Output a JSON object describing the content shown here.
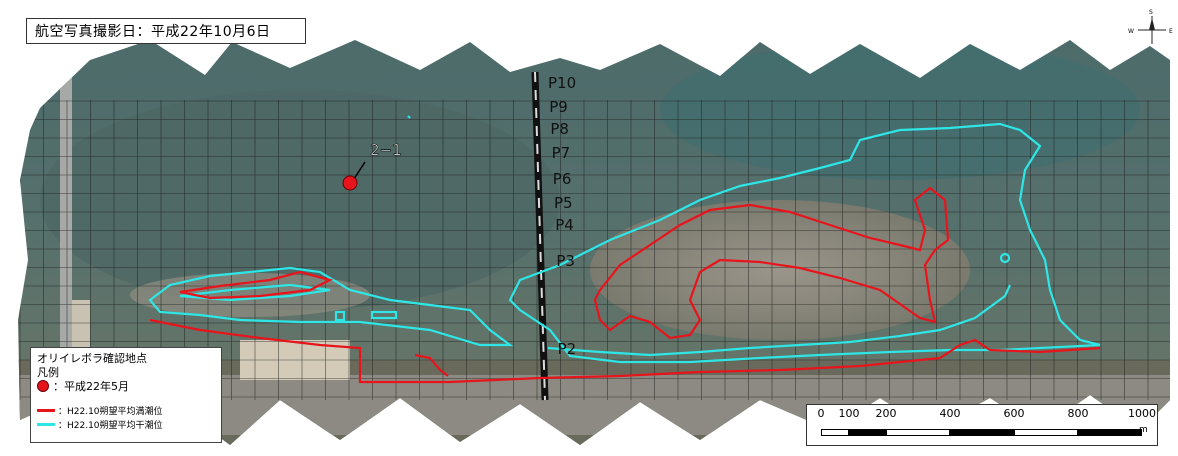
{
  "title": "航空写真撮影日：平成22年10月6日",
  "north_arrow": {
    "n": "N",
    "s": "S",
    "e": "E",
    "w": "W"
  },
  "survey_points": [
    "P10",
    "P9",
    "P8",
    "P7",
    "P6",
    "P5",
    "P4",
    "P3",
    "P2"
  ],
  "site_label": "2−1",
  "legend": {
    "heading1": "オリイレボラ確認地点",
    "heading2": "凡例",
    "point_label": "：平成22年5月",
    "red_line_label": "：H22.10朔望平均満潮位",
    "cyan_line_label": "：H22.10朔望平均干潮位",
    "colors": {
      "point": "#e8141c",
      "high_tide": "#e8141c",
      "low_tide": "#2ee6e6"
    }
  },
  "scale": {
    "ticks": [
      "0",
      "100",
      "200",
      "400",
      "600",
      "800",
      "1000"
    ],
    "unit": "m"
  }
}
